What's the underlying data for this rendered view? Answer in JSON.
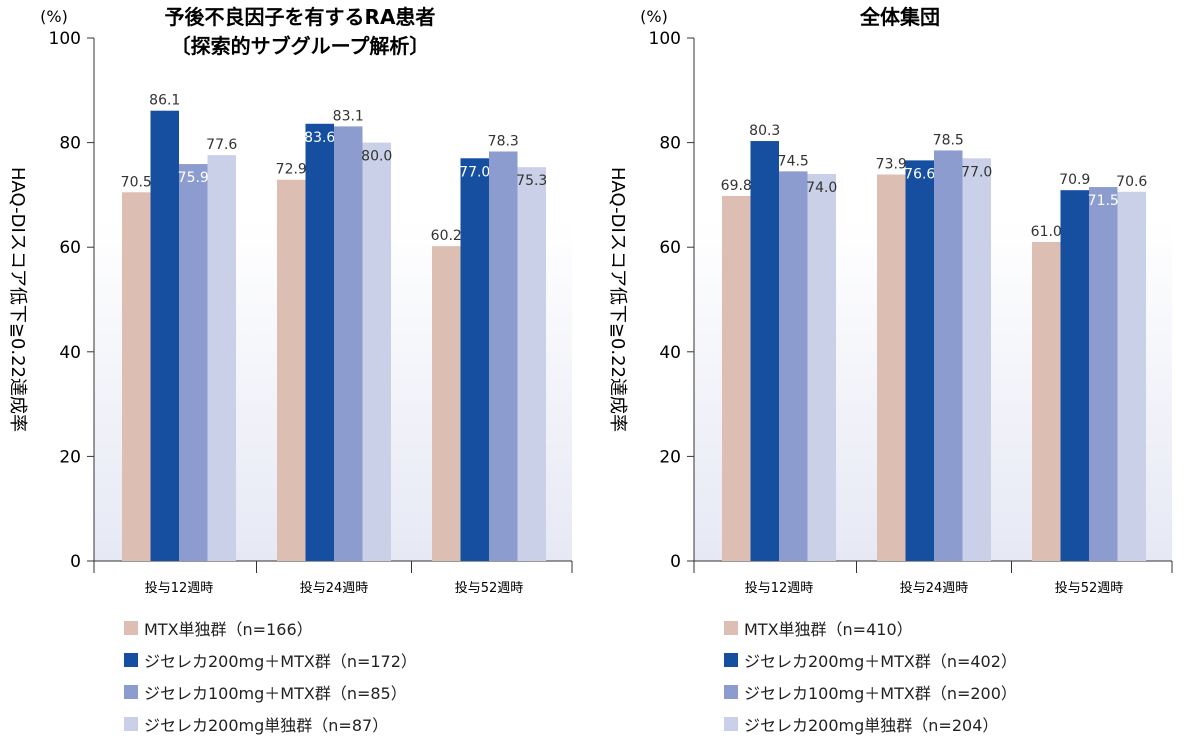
{
  "colors": {
    "mtx": "#dcbfb2",
    "combo200": "#164fa0",
    "combo100": "#8c9ccf",
    "mono200": "#cbd0e9",
    "axis": "#333333",
    "plot_bg_bottom": "#e6e8f4"
  },
  "legend": [
    {
      "left": "MTX単独群（n=166）",
      "right": "MTX単独群（n=410）",
      "color_key": "mtx"
    },
    {
      "left": "ジセレカ200mg＋MTX群（n=172）",
      "right": "ジセレカ200mg＋MTX群（n=402）",
      "color_key": "combo200"
    },
    {
      "left": "ジセレカ100mg＋MTX群（n=85）",
      "right": "ジセレカ100mg＋MTX群（n=200）",
      "color_key": "combo100"
    },
    {
      "left": "ジセレカ200mg単独群（n=87）",
      "right": "ジセレカ200mg単独群（n=204）",
      "color_key": "mono200"
    }
  ],
  "chart_data": [
    {
      "type": "bar",
      "title": "予後不良因子を有するRA患者",
      "subtitle": "〔探索的サブグループ解析〕",
      "unit_label": "(%)",
      "ylabel": "HAQ-DIスコア低下≧0.22達成率",
      "ylim": [
        0,
        100
      ],
      "yticks": [
        0,
        20,
        40,
        60,
        80,
        100
      ],
      "categories": [
        "投与12週時",
        "投与24週時",
        "投与52週時"
      ],
      "series": [
        {
          "color_key": "mtx",
          "values": [
            70.5,
            72.9,
            60.2
          ],
          "labels": [
            "70.5",
            "72.9",
            "60.2"
          ]
        },
        {
          "color_key": "combo200",
          "values": [
            86.1,
            83.6,
            77.0
          ],
          "labels": [
            "86.1",
            "83.6",
            "77.0"
          ]
        },
        {
          "color_key": "combo100",
          "values": [
            75.9,
            83.1,
            78.3
          ],
          "labels": [
            "75.9",
            "83.1",
            "78.3"
          ]
        },
        {
          "color_key": "mono200",
          "values": [
            77.6,
            80.0,
            75.3
          ],
          "labels": [
            "77.6",
            "80.0",
            "75.3"
          ]
        }
      ],
      "label_inside": [
        [
          false,
          false,
          false
        ],
        [
          false,
          true,
          true
        ],
        [
          true,
          false,
          false
        ],
        [
          false,
          true,
          true
        ]
      ]
    },
    {
      "type": "bar",
      "title": "全体集団",
      "subtitle": "",
      "unit_label": "(%)",
      "ylabel": "HAQ-DIスコア低下≧0.22達成率",
      "ylim": [
        0,
        100
      ],
      "yticks": [
        0,
        20,
        40,
        60,
        80,
        100
      ],
      "categories": [
        "投与12週時",
        "投与24週時",
        "投与52週時"
      ],
      "series": [
        {
          "color_key": "mtx",
          "values": [
            69.8,
            73.9,
            61.0
          ],
          "labels": [
            "69.8",
            "73.9",
            "61.0"
          ]
        },
        {
          "color_key": "combo200",
          "values": [
            80.3,
            76.6,
            70.9
          ],
          "labels": [
            "80.3",
            "76.6",
            "70.9"
          ]
        },
        {
          "color_key": "combo100",
          "values": [
            74.5,
            78.5,
            71.5
          ],
          "labels": [
            "74.5",
            "78.5",
            "71.5"
          ]
        },
        {
          "color_key": "mono200",
          "values": [
            74.0,
            77.0,
            70.6
          ],
          "labels": [
            "74.0",
            "77.0",
            "70.6"
          ]
        }
      ],
      "label_inside": [
        [
          false,
          false,
          false
        ],
        [
          false,
          true,
          false
        ],
        [
          false,
          false,
          true
        ],
        [
          true,
          true,
          false
        ]
      ]
    }
  ]
}
